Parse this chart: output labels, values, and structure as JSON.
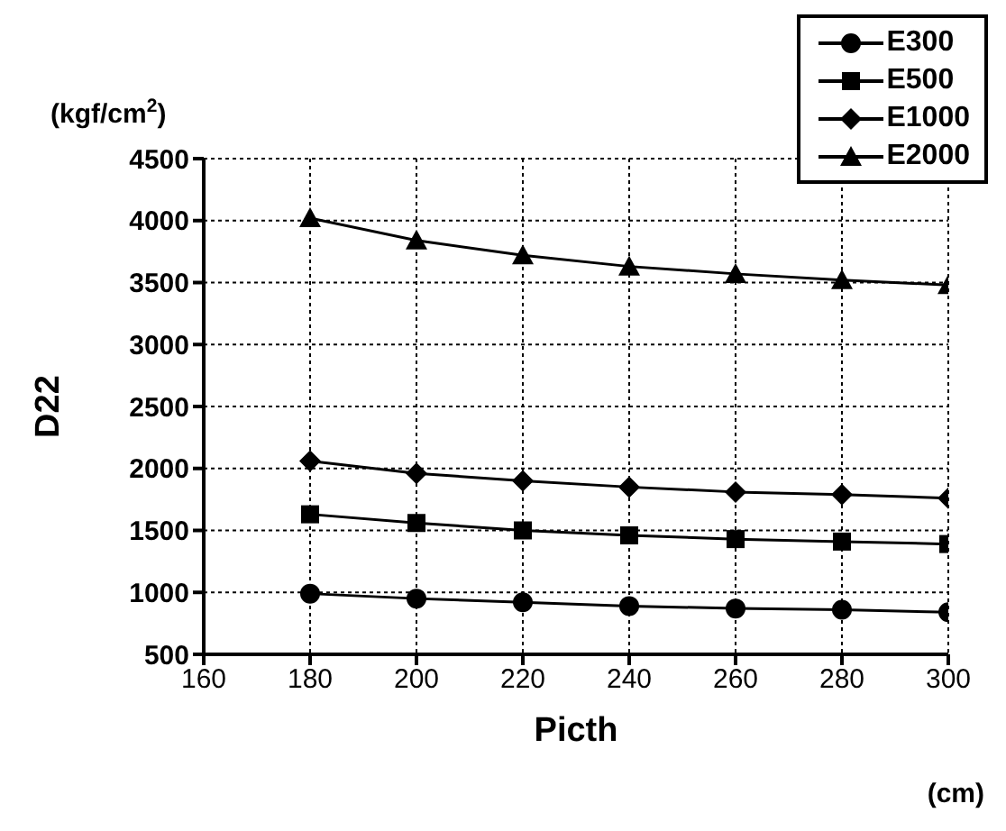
{
  "chart_data": {
    "type": "line",
    "xlabel": "Picth",
    "ylabel": "D22",
    "annotations": [
      "(kgf/cm$^{2}$)",
      "(cm)"
    ],
    "x": [
      180,
      200,
      220,
      240,
      260,
      280,
      300
    ],
    "xlim": [
      160,
      300
    ],
    "xticks": [
      160,
      180,
      200,
      220,
      240,
      260,
      280,
      300
    ],
    "ylim": [
      500,
      4500
    ],
    "yticks": [
      500,
      1000,
      1500,
      2000,
      2500,
      3000,
      3500,
      4000,
      4500
    ],
    "grid": true,
    "legend": "top right",
    "line_style": "solid",
    "series": [
      {
        "name": "E300",
        "color": "#000000",
        "marker": "circle",
        "values": [
          990,
          950,
          920,
          890,
          870,
          860,
          840
        ]
      },
      {
        "name": "E500",
        "color": "#000000",
        "marker": "square",
        "values": [
          1630,
          1560,
          1500,
          1460,
          1430,
          1410,
          1390
        ]
      },
      {
        "name": "E1000",
        "color": "#000000",
        "marker": "diamond",
        "values": [
          2060,
          1960,
          1900,
          1850,
          1810,
          1790,
          1760
        ]
      },
      {
        "name": "E2000",
        "color": "#000000",
        "marker": "triangle",
        "values": [
          4020,
          3840,
          3720,
          3630,
          3570,
          3520,
          3480
        ]
      }
    ]
  }
}
